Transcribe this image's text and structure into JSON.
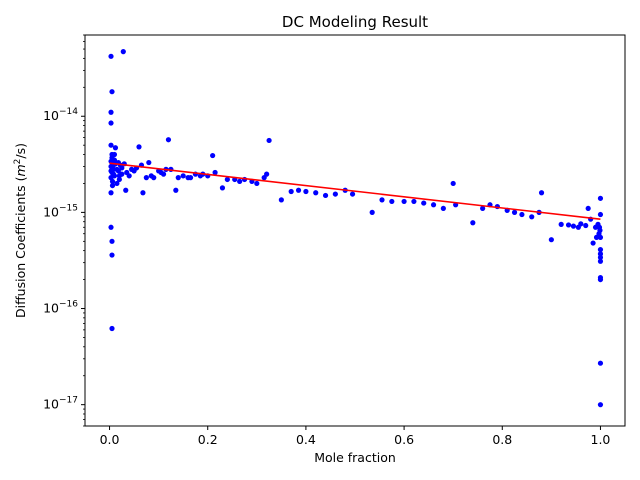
{
  "chart_data": {
    "type": "scatter",
    "title": "DC Modeling Result",
    "xlabel": "Mole fraction",
    "ylabel_main": "Diffusion Coefficients (",
    "ylabel_math_m": "m",
    "ylabel_math_exp": "2",
    "ylabel_math_rest": "/s)",
    "xlim": [
      -0.05,
      1.05
    ],
    "ylim": [
      6e-18,
      7e-14
    ],
    "yscale": "log",
    "grid": false,
    "x_ticks": [
      0.0,
      0.2,
      0.4,
      0.6,
      0.8,
      1.0
    ],
    "x_tick_labels": [
      "0.0",
      "0.2",
      "0.4",
      "0.6",
      "0.8",
      "1.0"
    ],
    "y_ticks": [
      1e-17,
      1e-16,
      1e-15,
      1e-14
    ],
    "y_tick_bases": [
      "10",
      "10",
      "10",
      "10"
    ],
    "y_tick_exps": [
      "−17",
      "−16",
      "−15",
      "−14"
    ],
    "colors": {
      "points": "#0000ff",
      "fit": "#ff0000",
      "axes": "#000000"
    },
    "series": [
      {
        "kind": "points",
        "x": [
          0.003,
          0.003,
          0.003,
          0.003,
          0.003,
          0.003,
          0.003,
          0.003,
          0.003,
          0.003,
          0.005,
          0.005,
          0.005,
          0.005,
          0.005,
          0.005,
          0.005,
          0.005,
          0.006,
          0.006,
          0.008,
          0.008,
          0.008,
          0.01,
          0.01,
          0.01,
          0.012,
          0.012,
          0.015,
          0.015,
          0.018,
          0.018,
          0.02,
          0.02,
          0.022,
          0.025,
          0.025,
          0.028,
          0.03,
          0.033,
          0.035,
          0.04,
          0.045,
          0.05,
          0.055,
          0.06,
          0.065,
          0.068,
          0.075,
          0.08,
          0.085,
          0.09,
          0.1,
          0.105,
          0.11,
          0.115,
          0.12,
          0.125,
          0.135,
          0.14,
          0.15,
          0.16,
          0.165,
          0.175,
          0.185,
          0.19,
          0.2,
          0.21,
          0.215,
          0.23,
          0.24,
          0.255,
          0.265,
          0.275,
          0.29,
          0.3,
          0.315,
          0.32,
          0.325,
          0.35,
          0.37,
          0.385,
          0.4,
          0.42,
          0.44,
          0.46,
          0.48,
          0.495,
          0.535,
          0.555,
          0.575,
          0.6,
          0.62,
          0.64,
          0.66,
          0.68,
          0.7,
          0.705,
          0.74,
          0.76,
          0.775,
          0.79,
          0.81,
          0.825,
          0.84,
          0.86,
          0.875,
          0.88,
          0.9,
          0.92,
          0.935,
          0.945,
          0.955,
          0.96,
          0.97,
          0.975,
          0.98,
          0.985,
          0.99,
          0.992,
          0.995,
          0.997,
          0.998,
          0.999,
          1.0,
          1.0,
          1.0,
          1.0,
          1.0,
          1.0,
          1.0,
          1.0,
          1.0,
          1.0,
          1.0
        ],
        "y": [
          4.2e-14,
          1.1e-14,
          8.5e-15,
          5e-15,
          3.4e-15,
          3e-15,
          2.7e-15,
          2.3e-15,
          1.6e-15,
          7e-16,
          5e-16,
          3.6e-16,
          6.2e-17,
          1.8e-14,
          4e-15,
          3.7e-15,
          3.3e-15,
          2.6e-15,
          2.1e-15,
          1.9e-15,
          3.1e-15,
          2.8e-15,
          2.5e-15,
          4e-15,
          3.5e-15,
          2.4e-15,
          4.7e-15,
          3.2e-15,
          2.8e-15,
          2e-15,
          3.3e-15,
          2.7e-15,
          2.4e-15,
          2.2e-15,
          3.1e-15,
          2.9e-15,
          2.5e-15,
          4.7e-14,
          3.2e-15,
          1.7e-15,
          2.6e-15,
          2.4e-15,
          2.8e-15,
          2.7e-15,
          2.9e-15,
          4.8e-15,
          3.1e-15,
          1.6e-15,
          2.3e-15,
          3.3e-15,
          2.4e-15,
          2.3e-15,
          2.7e-15,
          2.6e-15,
          2.5e-15,
          2.8e-15,
          5.7e-15,
          2.8e-15,
          1.7e-15,
          2.3e-15,
          2.4e-15,
          2.3e-15,
          2.3e-15,
          2.5e-15,
          2.4e-15,
          2.5e-15,
          2.4e-15,
          3.9e-15,
          2.6e-15,
          1.8e-15,
          2.2e-15,
          2.2e-15,
          2.1e-15,
          2.2e-15,
          2.1e-15,
          2e-15,
          2.3e-15,
          2.5e-15,
          5.6e-15,
          1.35e-15,
          1.65e-15,
          1.7e-15,
          1.65e-15,
          1.6e-15,
          1.5e-15,
          1.55e-15,
          1.7e-15,
          1.55e-15,
          1e-15,
          1.35e-15,
          1.3e-15,
          1.3e-15,
          1.3e-15,
          1.25e-15,
          1.2e-15,
          1.1e-15,
          2e-15,
          1.2e-15,
          7.8e-16,
          1.1e-15,
          1.2e-15,
          1.15e-15,
          1.05e-15,
          1e-15,
          9.5e-16,
          9e-16,
          1e-15,
          1.6e-15,
          5.2e-16,
          7.5e-16,
          7.4e-16,
          7.2e-16,
          7e-16,
          7.6e-16,
          7.3e-16,
          1.1e-15,
          8.5e-16,
          4.8e-16,
          7e-16,
          5.5e-16,
          7.5e-16,
          6e-16,
          7e-16,
          6.5e-16,
          1.4e-15,
          9.5e-16,
          5.5e-16,
          4.1e-16,
          3.7e-16,
          3.4e-16,
          3.1e-16,
          2.1e-16,
          2e-16,
          2.7e-17,
          1e-17
        ]
      },
      {
        "kind": "fit-line",
        "x": [
          0.0,
          1.0
        ],
        "y": [
          3.25e-15,
          8.5e-16
        ]
      }
    ]
  }
}
